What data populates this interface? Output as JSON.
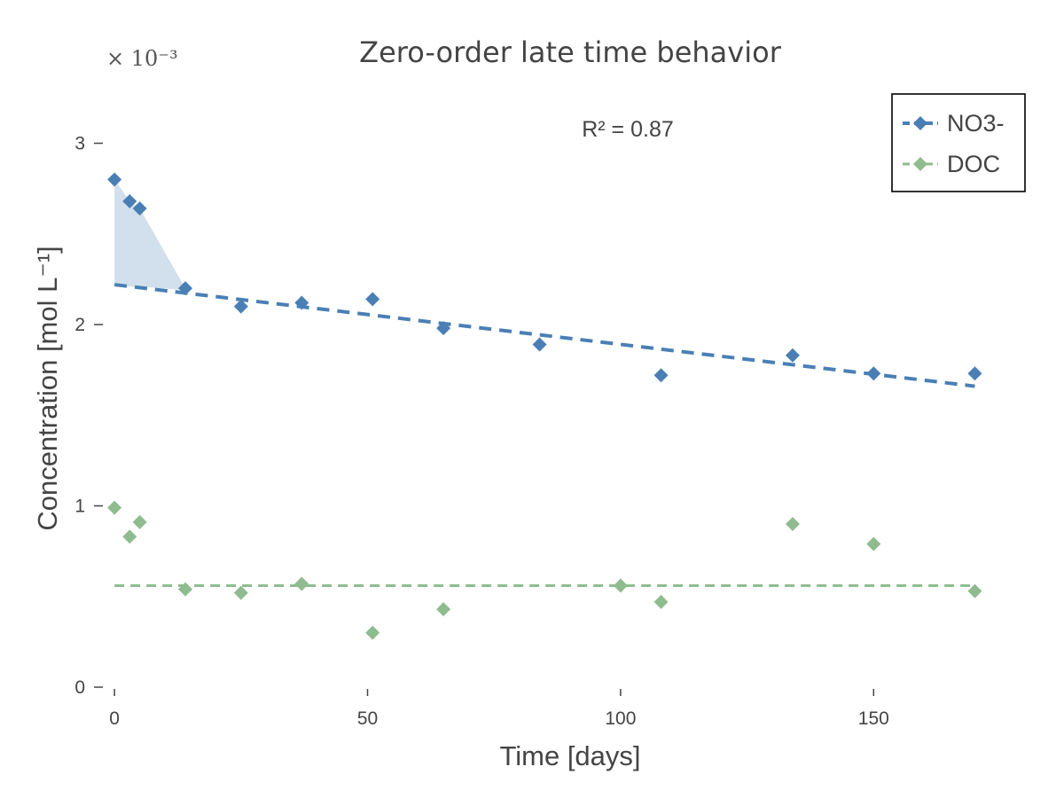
{
  "chart_data": {
    "type": "scatter",
    "title": "Zero-order late time behavior",
    "xlabel": "Time [days]",
    "ylabel": "Concentration [mol L⁻¹]",
    "y_multiplier_label": "× 10⁻³",
    "annotation": "R² = 0.87",
    "xlim": [
      -3,
      175
    ],
    "ylim": [
      0,
      3.35
    ],
    "x_ticks": [
      0,
      50,
      100,
      150
    ],
    "y_ticks": [
      0,
      1,
      2,
      3
    ],
    "grid": false,
    "legend_position": "top-right",
    "series": [
      {
        "name": "NO3-",
        "color": "#4a7fb5",
        "marker": "diamond",
        "points": [
          {
            "x": 0,
            "y": 2.8
          },
          {
            "x": 3,
            "y": 2.68
          },
          {
            "x": 5,
            "y": 2.64
          },
          {
            "x": 14,
            "y": 2.2
          },
          {
            "x": 25,
            "y": 2.1
          },
          {
            "x": 37,
            "y": 2.12
          },
          {
            "x": 51,
            "y": 2.14
          },
          {
            "x": 65,
            "y": 1.98
          },
          {
            "x": 84,
            "y": 1.89
          },
          {
            "x": 108,
            "y": 1.72
          },
          {
            "x": 134,
            "y": 1.83
          },
          {
            "x": 150,
            "y": 1.73
          },
          {
            "x": 170,
            "y": 1.73
          }
        ],
        "fit_line": {
          "x": [
            0,
            170
          ],
          "y": [
            2.22,
            1.66
          ]
        },
        "shaded_band": {
          "x": [
            0,
            3,
            5,
            14
          ],
          "upper": [
            2.8,
            2.68,
            2.64,
            2.2
          ],
          "lower": [
            2.22,
            2.21,
            2.21,
            2.19
          ]
        }
      },
      {
        "name": "DOC",
        "color": "#8fbc8f",
        "marker": "diamond",
        "points": [
          {
            "x": 0,
            "y": 0.99
          },
          {
            "x": 3,
            "y": 0.83
          },
          {
            "x": 5,
            "y": 0.91
          },
          {
            "x": 14,
            "y": 0.54
          },
          {
            "x": 25,
            "y": 0.52
          },
          {
            "x": 37,
            "y": 0.57
          },
          {
            "x": 51,
            "y": 0.3
          },
          {
            "x": 65,
            "y": 0.43
          },
          {
            "x": 100,
            "y": 0.56
          },
          {
            "x": 108,
            "y": 0.47
          },
          {
            "x": 134,
            "y": 0.9
          },
          {
            "x": 150,
            "y": 0.79
          },
          {
            "x": 170,
            "y": 0.53
          }
        ],
        "fit_line": {
          "x": [
            0,
            170
          ],
          "y": [
            0.56,
            0.56
          ]
        }
      }
    ]
  }
}
